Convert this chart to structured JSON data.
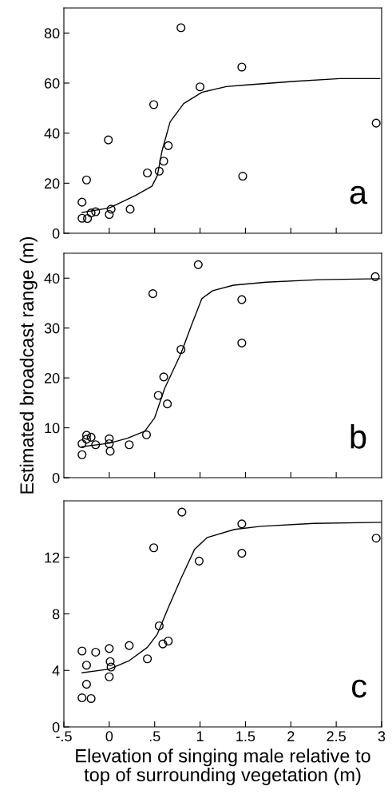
{
  "chart_data": [
    {
      "type": "scatter",
      "annotations": [
        "a"
      ],
      "xlim": [
        -0.5,
        3
      ],
      "ylim": [
        0,
        90
      ],
      "tick_labels": "y",
      "marker": "circle",
      "legend": false,
      "grid": false,
      "xticks": [
        {
          "value": 0,
          "label": null
        },
        {
          "value": 0.5,
          "label": null
        },
        {
          "value": 1,
          "label": null
        },
        {
          "value": 1.5,
          "label": null
        },
        {
          "value": 2,
          "label": null
        },
        {
          "value": 2.5,
          "label": null
        }
      ],
      "yticks": [
        0,
        20,
        40,
        60,
        80
      ],
      "series": [
        {
          "color": "#000000",
          "x": [
            -0.3,
            -0.3,
            -0.24,
            -0.25,
            -0.2,
            -0.15,
            -0.01,
            0.02,
            0.0,
            0.23,
            0.42,
            0.49,
            0.55,
            0.6,
            0.65,
            0.79,
            1.0,
            1.46,
            1.47,
            2.94
          ],
          "values": [
            12.4,
            6.0,
            5.9,
            21.3,
            8.1,
            8.6,
            37.3,
            9.6,
            7.5,
            9.6,
            24.1,
            51.4,
            24.8,
            28.8,
            35.0,
            82.1,
            58.5,
            66.4,
            22.8,
            44.0
          ]
        },
        {
          "type": "line",
          "color": "#000000",
          "marker": "none",
          "x": [
            -0.3,
            0.0,
            0.29,
            0.47,
            0.53,
            0.58,
            0.67,
            0.82,
            1.02,
            1.29,
            1.52,
            2.05,
            2.54,
            2.98
          ],
          "values": [
            8.3,
            10.1,
            15.1,
            18.8,
            23.1,
            32.7,
            44.5,
            51.8,
            56.3,
            58.6,
            59.3,
            60.7,
            61.8,
            61.8
          ]
        }
      ]
    },
    {
      "type": "scatter",
      "annotations": [
        "b"
      ],
      "ylabel": "Estimated broadcast range (m)",
      "xlim": [
        -0.5,
        3
      ],
      "ylim": [
        0,
        45
      ],
      "tick_labels": "y",
      "marker": "circle",
      "legend": false,
      "grid": false,
      "xticks": [
        {
          "value": 0,
          "label": null
        },
        {
          "value": 0.5,
          "label": null
        },
        {
          "value": 1,
          "label": null
        },
        {
          "value": 1.5,
          "label": null
        },
        {
          "value": 2,
          "label": null
        },
        {
          "value": 2.5,
          "label": null
        }
      ],
      "yticks": [
        0,
        10,
        20,
        30,
        40
      ],
      "series": [
        {
          "color": "#000000",
          "x": [
            -0.3,
            -0.3,
            -0.25,
            -0.25,
            -0.2,
            -0.15,
            0.0,
            0.0,
            0.01,
            0.22,
            0.41,
            0.48,
            0.54,
            0.6,
            0.64,
            0.79,
            0.98,
            1.46,
            1.46,
            2.93
          ],
          "values": [
            6.8,
            4.6,
            8.5,
            7.7,
            8.1,
            6.6,
            7.8,
            6.8,
            5.3,
            6.6,
            8.6,
            36.9,
            16.5,
            20.2,
            14.8,
            25.7,
            42.7,
            35.7,
            27.0,
            40.3
          ]
        },
        {
          "type": "line",
          "color": "#000000",
          "marker": "none",
          "x": [
            -0.3,
            0.0,
            0.2,
            0.39,
            0.5,
            0.61,
            0.79,
            0.91,
            1.02,
            1.14,
            1.37,
            1.73,
            2.31,
            2.98
          ],
          "values": [
            6.2,
            6.9,
            7.9,
            9.3,
            12.0,
            17.9,
            24.9,
            30.8,
            35.9,
            37.5,
            38.6,
            39.2,
            39.7,
            39.9
          ]
        }
      ]
    },
    {
      "type": "scatter",
      "annotations": [
        "c"
      ],
      "xlabel": "Elevation of singing male relative to\ntop of surrounding vegetation (m)",
      "xlim": [
        -0.5,
        3
      ],
      "ylim": [
        0,
        16
      ],
      "marker": "circle",
      "legend": false,
      "grid": false,
      "xticks": [
        {
          "value": -0.5,
          "label": "-.5"
        },
        0,
        {
          "value": 0.5,
          "label": ".5"
        },
        1,
        1.5,
        2,
        2.5,
        3
      ],
      "yticks": [
        0,
        4,
        8,
        12
      ],
      "series": [
        {
          "color": "#000000",
          "x": [
            -0.3,
            -0.25,
            -0.25,
            -0.3,
            -0.2,
            -0.15,
            0.0,
            0.01,
            0.02,
            0.0,
            0.22,
            0.42,
            0.49,
            0.55,
            0.59,
            0.65,
            0.8,
            0.99,
            1.46,
            1.46,
            2.94
          ],
          "values": [
            5.37,
            4.37,
            3.02,
            2.06,
            2.01,
            5.29,
            5.55,
            4.62,
            4.24,
            3.55,
            5.76,
            4.82,
            12.68,
            7.15,
            5.87,
            6.08,
            15.2,
            11.74,
            14.37,
            12.29,
            13.36
          ]
        },
        {
          "type": "line",
          "color": "#000000",
          "marker": "none",
          "x": [
            -0.3,
            0.0,
            0.22,
            0.42,
            0.53,
            0.65,
            0.79,
            0.94,
            1.08,
            1.38,
            1.67,
            2.25,
            2.99
          ],
          "values": [
            3.83,
            4.09,
            4.69,
            5.63,
            6.57,
            8.44,
            10.5,
            12.57,
            13.41,
            13.98,
            14.2,
            14.4,
            14.48
          ]
        }
      ]
    }
  ]
}
